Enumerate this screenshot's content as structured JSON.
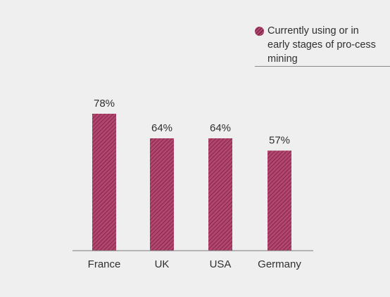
{
  "chart_data": {
    "type": "bar",
    "categories": [
      "France",
      "UK",
      "USA",
      "Germany"
    ],
    "values": [
      78,
      64,
      64,
      57
    ],
    "value_labels": [
      "78%",
      "64%",
      "64%",
      "57%"
    ],
    "series": [
      {
        "name": "Currently using or in early stages of process mining",
        "values": [
          78,
          64,
          64,
          57
        ]
      }
    ],
    "ylim": [
      0,
      100
    ],
    "grid": false,
    "legend_position": "top-right",
    "colors": {
      "bar": "#b3456e",
      "hatch": "#6e2140",
      "text": "#2f2f2f",
      "axis": "#7a7a7a"
    }
  },
  "legend": {
    "label": "Currently using or in early stages of pro-cess mining"
  }
}
